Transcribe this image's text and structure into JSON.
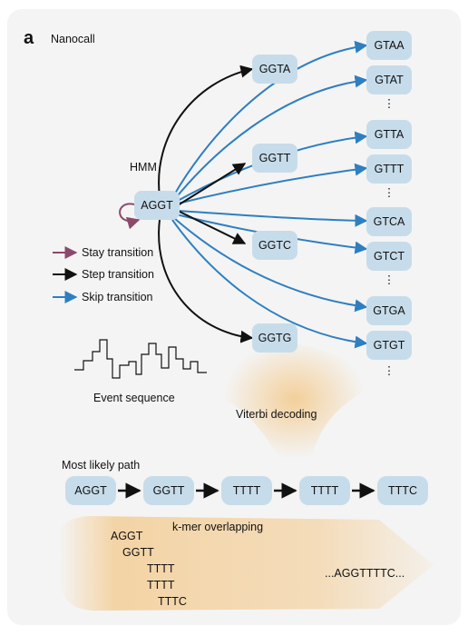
{
  "panel_label": "a",
  "title": "Nanocall",
  "hmm_label": "HMM",
  "center_node": "AGGT",
  "step_nodes": [
    "GGTA",
    "GGTT",
    "GGTC",
    "GGTG"
  ],
  "skip_nodes": [
    "GTAA",
    "GTAT",
    "GTTA",
    "GTTT",
    "GTCA",
    "GTCT",
    "GTGA",
    "GTGT"
  ],
  "ellipsis": "⋮",
  "legend": [
    {
      "label": "Stay transition",
      "color": "#8b4a6b"
    },
    {
      "label": "Step transition",
      "color": "#111111"
    },
    {
      "label": "Skip transition",
      "color": "#2e7fc1"
    }
  ],
  "event_sequence_label": "Event sequence",
  "viterbi_label": "Viterbi decoding",
  "most_likely_path_label": "Most likely path",
  "path_nodes": [
    "AGGT",
    "GGTT",
    "TTTT",
    "TTTT",
    "TTTC"
  ],
  "kmer_overlap_label": "k-mer overlapping",
  "kmer_stack": [
    "AGGT",
    "GGTT",
    "TTTT",
    "TTTT",
    "TTTC"
  ],
  "result_sequence": "...AGGTTTTC...",
  "colors": {
    "node_fill": "#c7dcea",
    "skip_arrow": "#2e7fc1",
    "step_arrow": "#111111",
    "stay_arrow": "#8b4a6b",
    "glow": "#f3c98b"
  }
}
